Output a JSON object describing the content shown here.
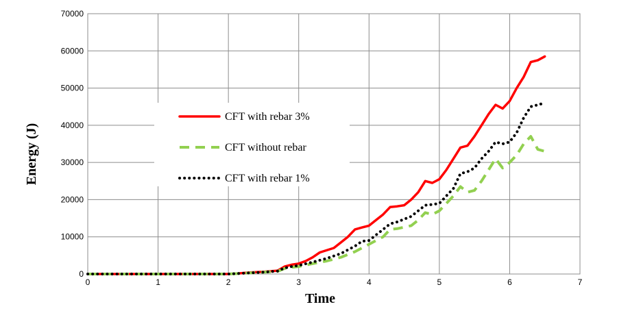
{
  "chart_data": {
    "type": "line",
    "title": "",
    "xlabel": "Time",
    "ylabel": "Energy (J)",
    "xlim": [
      0,
      7
    ],
    "ylim": [
      0,
      70000
    ],
    "xticks": [
      "0",
      "1",
      "2",
      "3",
      "4",
      "5",
      "6",
      "7"
    ],
    "yticks": [
      "0",
      "10000",
      "20000",
      "30000",
      "40000",
      "50000",
      "60000",
      "70000"
    ],
    "grid": true,
    "legend_position": "center-left",
    "series": [
      {
        "name": "CFT with rebar 3%",
        "color": "#ff0000",
        "style": "solid",
        "x": [
          0,
          1,
          2,
          2.1,
          2.3,
          2.5,
          2.7,
          2.8,
          2.9,
          3.0,
          3.1,
          3.2,
          3.3,
          3.5,
          3.6,
          3.7,
          3.8,
          3.9,
          4.0,
          4.1,
          4.2,
          4.3,
          4.4,
          4.5,
          4.6,
          4.7,
          4.8,
          4.9,
          5.0,
          5.1,
          5.2,
          5.3,
          5.4,
          5.5,
          5.6,
          5.7,
          5.8,
          5.9,
          6.0,
          6.1,
          6.2,
          6.3,
          6.4,
          6.5
        ],
        "y": [
          0,
          0,
          0,
          100,
          400,
          600,
          900,
          2000,
          2500,
          2800,
          3500,
          4500,
          5800,
          7000,
          8500,
          10000,
          12000,
          12500,
          13000,
          14500,
          16000,
          18000,
          18200,
          18500,
          20000,
          22000,
          25000,
          24500,
          25500,
          28000,
          31000,
          34000,
          34500,
          37000,
          40000,
          43000,
          45500,
          44500,
          46500,
          50000,
          53000,
          57000,
          57500,
          58500
        ]
      },
      {
        "name": "CFT without rebar",
        "color": "#92d050",
        "style": "dashed",
        "x": [
          0,
          1,
          2,
          2.1,
          2.3,
          2.5,
          2.7,
          2.8,
          2.9,
          3.0,
          3.2,
          3.4,
          3.6,
          3.8,
          4.0,
          4.1,
          4.2,
          4.3,
          4.4,
          4.6,
          4.7,
          4.8,
          4.9,
          5.0,
          5.1,
          5.2,
          5.3,
          5.4,
          5.5,
          5.6,
          5.7,
          5.8,
          5.9,
          6.0,
          6.1,
          6.2,
          6.3,
          6.4,
          6.5
        ],
        "y": [
          0,
          0,
          0,
          100,
          300,
          500,
          700,
          1500,
          1800,
          2000,
          2800,
          3500,
          4500,
          6000,
          8000,
          9000,
          10000,
          12000,
          12200,
          13000,
          14500,
          16500,
          16000,
          17000,
          19000,
          21000,
          23500,
          22000,
          22500,
          25000,
          28000,
          31000,
          28500,
          30000,
          32000,
          35000,
          37000,
          33500,
          33000
        ]
      },
      {
        "name": "CFT with rebar 1%",
        "color": "#000000",
        "style": "dotted",
        "x": [
          0,
          1,
          2,
          2.1,
          2.3,
          2.5,
          2.7,
          2.8,
          2.9,
          3.0,
          3.2,
          3.4,
          3.6,
          3.8,
          3.9,
          4.0,
          4.1,
          4.2,
          4.3,
          4.4,
          4.6,
          4.7,
          4.8,
          4.9,
          5.0,
          5.1,
          5.2,
          5.3,
          5.4,
          5.5,
          5.6,
          5.7,
          5.8,
          5.9,
          6.0,
          6.1,
          6.2,
          6.3,
          6.4,
          6.5
        ],
        "y": [
          0,
          0,
          0,
          100,
          300,
          500,
          800,
          1600,
          2000,
          2300,
          3200,
          4200,
          5500,
          7500,
          8800,
          9000,
          10500,
          12000,
          13500,
          14000,
          15500,
          17000,
          18500,
          18700,
          19000,
          21000,
          23000,
          27000,
          27500,
          28500,
          31000,
          33000,
          35500,
          35000,
          35500,
          38000,
          42000,
          45000,
          45500,
          46000
        ]
      }
    ]
  }
}
